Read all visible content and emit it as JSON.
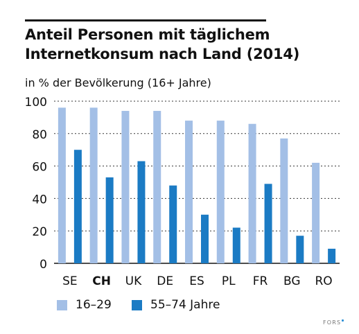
{
  "chart_data": {
    "type": "bar",
    "title": "Anteil Personen mit täglichem Internetkonsum nach Land (2014)",
    "subtitle": "in % der Bevölkerung (16+ Jahre)",
    "categories": [
      "SE",
      "CH",
      "UK",
      "DE",
      "ES",
      "PL",
      "FR",
      "BG",
      "RO"
    ],
    "highlight_category": "CH",
    "series": [
      {
        "name": "16–29",
        "color": "#a3bfe6",
        "values": [
          96,
          96,
          94,
          94,
          88,
          88,
          86,
          77,
          62
        ]
      },
      {
        "name": "55–74 Jahre",
        "color": "#1b7bc4",
        "values": [
          70,
          53,
          63,
          48,
          30,
          22,
          49,
          17,
          9
        ]
      }
    ],
    "yticks": [
      0,
      20,
      40,
      60,
      80,
      100
    ],
    "ylim": [
      0,
      100
    ],
    "grid": "dotted-horizontal",
    "legend_position": "bottom-left"
  },
  "footer": {
    "logo_text": "FORS"
  }
}
